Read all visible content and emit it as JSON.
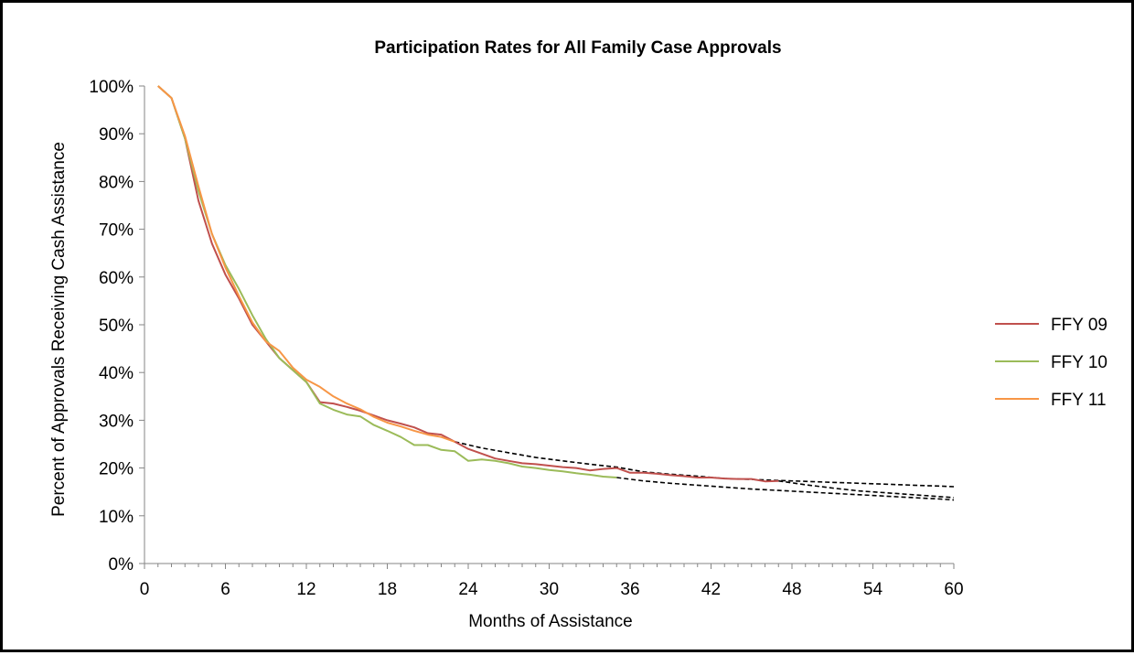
{
  "chart_data": {
    "type": "line",
    "title": "Participation Rates for All Family Case Approvals",
    "xlabel": "Months of Assistance",
    "ylabel": "Percent of Approvals Receiving Cash Assistance",
    "xlim": [
      0,
      60
    ],
    "ylim": [
      0,
      100
    ],
    "x_ticks": [
      "0",
      "6",
      "12",
      "18",
      "24",
      "30",
      "36",
      "42",
      "48",
      "54",
      "60"
    ],
    "y_ticks": [
      "0%",
      "10%",
      "20%",
      "30%",
      "40%",
      "50%",
      "60%",
      "70%",
      "80%",
      "90%",
      "100%"
    ],
    "grid": false,
    "legend": "right",
    "series": [
      {
        "name": "FFY 09",
        "color": "#C0504D",
        "x": [
          1,
          2,
          3,
          4,
          5,
          6,
          7,
          8,
          9,
          10,
          11,
          12,
          13,
          14,
          15,
          16,
          17,
          18,
          19,
          20,
          21,
          22,
          23,
          24,
          25,
          26,
          27,
          28,
          29,
          30,
          31,
          32,
          33,
          34,
          35,
          36,
          37,
          38,
          39,
          40,
          41,
          42,
          43,
          44,
          45,
          46,
          47
        ],
        "y": [
          100,
          97.5,
          89,
          76,
          67,
          60.5,
          55.5,
          50,
          46.5,
          43,
          40.5,
          38,
          33.8,
          33.5,
          32.8,
          32,
          31,
          30,
          29.3,
          28.5,
          27.3,
          27,
          25.5,
          24,
          23,
          22,
          21.5,
          21,
          20.8,
          20.5,
          20.2,
          20,
          19.5,
          19.8,
          20,
          19,
          19,
          18.8,
          18.5,
          18.3,
          18,
          18,
          17.8,
          17.7,
          17.7,
          17.2,
          17.3
        ]
      },
      {
        "name": "FFY 10",
        "color": "#9BBB59",
        "x": [
          1,
          2,
          3,
          4,
          5,
          6,
          7,
          8,
          9,
          10,
          11,
          12,
          13,
          14,
          15,
          16,
          17,
          18,
          19,
          20,
          21,
          22,
          23,
          24,
          25,
          26,
          27,
          28,
          29,
          30,
          31,
          32,
          33,
          34,
          35
        ],
        "y": [
          100,
          97.5,
          89,
          78,
          69,
          62.5,
          57.5,
          52,
          47,
          43,
          40.5,
          38,
          33.5,
          32.2,
          31.2,
          30.8,
          29,
          27.8,
          26.5,
          24.8,
          24.8,
          23.8,
          23.5,
          21.5,
          21.8,
          21.5,
          21,
          20.3,
          20,
          19.6,
          19.3,
          18.9,
          18.6,
          18.2,
          18
        ]
      },
      {
        "name": "FFY 11",
        "color": "#F79646",
        "x": [
          1,
          2,
          3,
          4,
          5,
          6,
          7,
          8,
          9,
          10,
          11,
          12,
          13,
          14,
          15,
          16,
          17,
          18,
          19,
          20,
          21,
          22,
          23
        ],
        "y": [
          100,
          97.5,
          89.5,
          79,
          69,
          62,
          56,
          50.5,
          46.5,
          44.5,
          41,
          38.5,
          37,
          35,
          33.5,
          32.3,
          30.7,
          29.5,
          28.7,
          27.8,
          27,
          26.5,
          25.5
        ]
      }
    ],
    "projections": [
      {
        "style": "dashed",
        "color": "#000000",
        "x": [
          23,
          25,
          27,
          29,
          31,
          33,
          35,
          37,
          39,
          41,
          43,
          45,
          47,
          49,
          51,
          53,
          55,
          57,
          59,
          60
        ],
        "y": [
          25.5,
          24.2,
          23.2,
          22.2,
          21.5,
          20.8,
          20.2,
          19.2,
          18.7,
          18.3,
          17.8,
          17.6,
          17.4,
          17.2,
          17,
          16.8,
          16.6,
          16.4,
          16.2,
          16.1
        ]
      },
      {
        "style": "dashed",
        "color": "#000000",
        "x": [
          47,
          49,
          51,
          53,
          55,
          57,
          59,
          60
        ],
        "y": [
          17.3,
          16.5,
          15.8,
          15.2,
          14.8,
          14.4,
          14,
          13.8
        ]
      },
      {
        "style": "dashed",
        "color": "#000000",
        "x": [
          35,
          37,
          39,
          41,
          43,
          45,
          47,
          49,
          51,
          53,
          55,
          57,
          59,
          60
        ],
        "y": [
          18,
          17.3,
          16.8,
          16.4,
          16,
          15.6,
          15.3,
          15,
          14.7,
          14.4,
          14.1,
          13.8,
          13.5,
          13.3
        ]
      }
    ]
  }
}
